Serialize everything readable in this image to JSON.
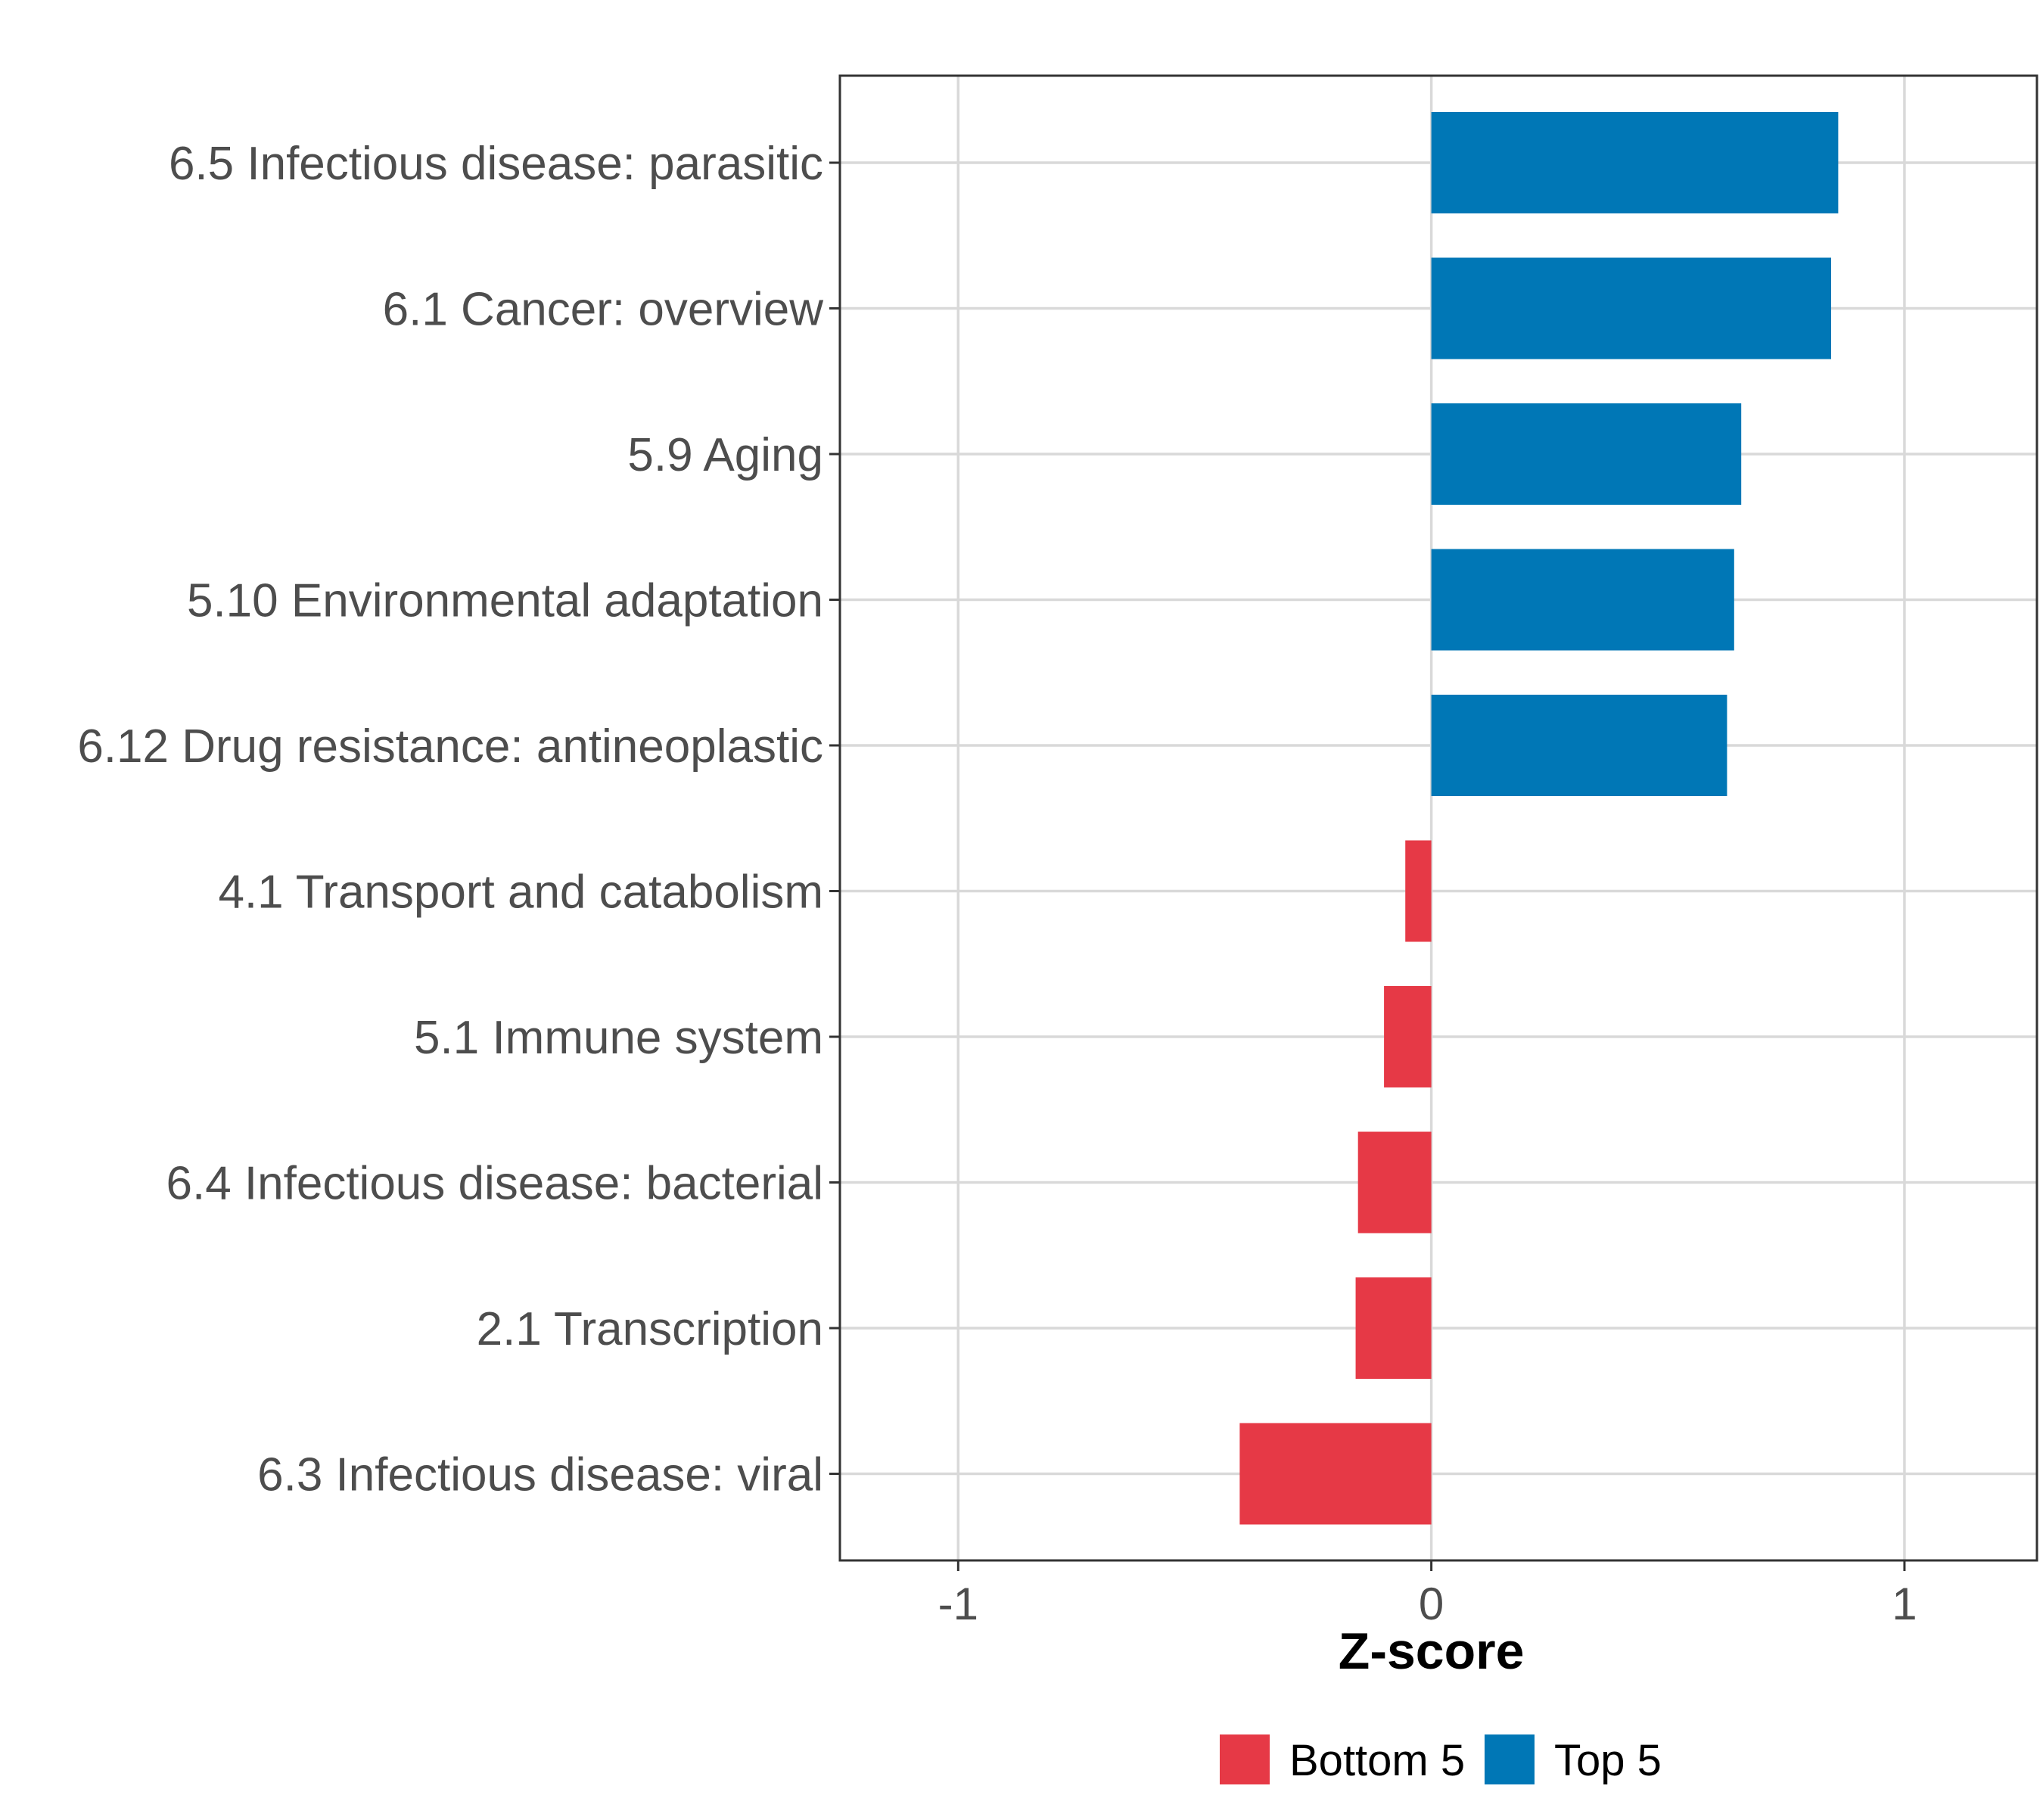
{
  "chart_data": {
    "type": "bar",
    "orientation": "horizontal",
    "title": "",
    "xlabel": "Z-score",
    "ylabel": "",
    "xlim": [
      -1.25,
      1.28
    ],
    "xticks": [
      -1,
      0,
      1
    ],
    "xtick_labels": [
      "-1",
      "0",
      "1"
    ],
    "grid": true,
    "legend_position": "bottom",
    "categories": [
      "6.5 Infectious disease: parasitic",
      "6.1 Cancer: overview",
      "5.9 Aging",
      "5.10 Environmental adaptation",
      "6.12 Drug resistance: antineoplastic",
      "4.1 Transport and catabolism",
      "5.1 Immune system",
      "6.4 Infectious disease: bacterial",
      "2.1 Transcription",
      "6.3 Infectious disease: viral"
    ],
    "values": [
      0.86,
      0.845,
      0.655,
      0.64,
      0.625,
      -0.055,
      -0.1,
      -0.155,
      -0.16,
      -0.405
    ],
    "groups": [
      "Top 5",
      "Top 5",
      "Top 5",
      "Top 5",
      "Top 5",
      "Bottom 5",
      "Bottom 5",
      "Bottom 5",
      "Bottom 5",
      "Bottom 5"
    ],
    "series": [
      {
        "name": "Bottom 5",
        "color": "#e63946"
      },
      {
        "name": "Top 5",
        "color": "#0077b6"
      }
    ]
  }
}
